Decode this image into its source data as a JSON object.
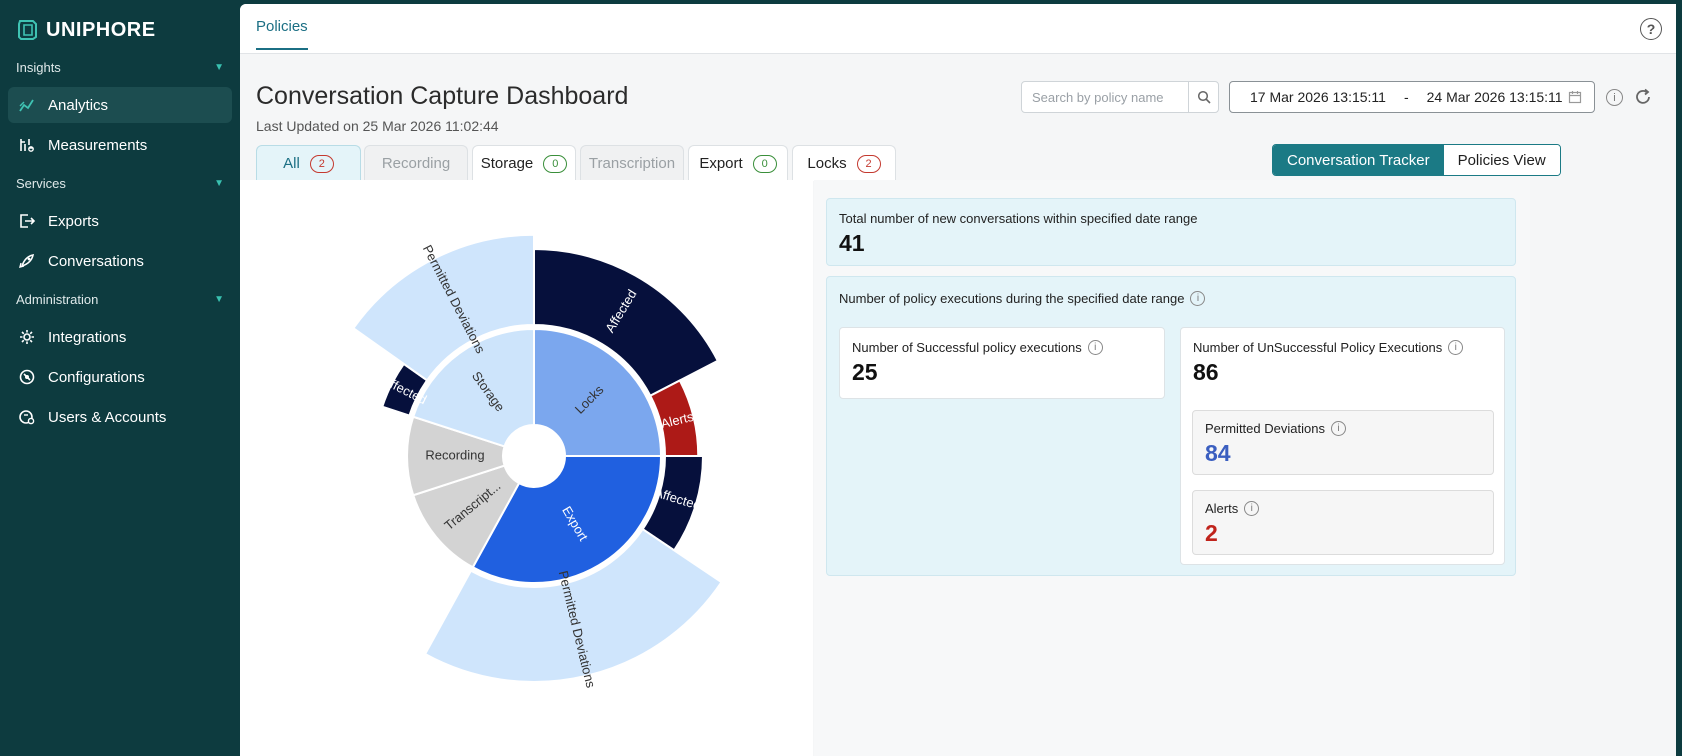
{
  "brand": {
    "name": "UNIPHORE"
  },
  "sidebar": {
    "sections": [
      {
        "label": "Insights",
        "items": [
          {
            "label": "Analytics",
            "icon": "analytics-icon"
          },
          {
            "label": "Measurements",
            "icon": "measurements-icon"
          }
        ]
      },
      {
        "label": "Services",
        "items": [
          {
            "label": "Exports",
            "icon": "export-icon"
          },
          {
            "label": "Conversations",
            "icon": "rocket-icon"
          }
        ]
      },
      {
        "label": "Administration",
        "items": [
          {
            "label": "Integrations",
            "icon": "gear-icon"
          },
          {
            "label": "Configurations",
            "icon": "configurations-icon"
          },
          {
            "label": "Users & Accounts",
            "icon": "users-icon"
          }
        ]
      }
    ],
    "active": "Analytics"
  },
  "header": {
    "tab": "Policies",
    "help": "?"
  },
  "dashboard": {
    "title": "Conversation Capture Dashboard",
    "last_updated": "Last Updated on 25 Mar 2026 11:02:44",
    "search_placeholder": "Search by policy name",
    "date_from": "17 Mar 2026 13:15:11",
    "date_sep": "-",
    "date_to": "24 Mar 2026 13:15:11"
  },
  "filter_tabs": [
    {
      "label": "All",
      "badge": "2",
      "badge_color": "red",
      "state": "active"
    },
    {
      "label": "Recording",
      "badge": "",
      "state": "disabled"
    },
    {
      "label": "Storage",
      "badge": "0",
      "badge_color": "green",
      "state": "normal"
    },
    {
      "label": "Transcription",
      "badge": "",
      "state": "disabled"
    },
    {
      "label": "Export",
      "badge": "0",
      "badge_color": "green",
      "state": "normal"
    },
    {
      "label": "Locks",
      "badge": "2",
      "badge_color": "red",
      "state": "normal"
    }
  ],
  "view_toggle": {
    "selected": "Conversation Tracker",
    "other": "Policies View"
  },
  "stats": {
    "total_label": "Total number of new conversations within specified date range",
    "total_value": "41",
    "exec_label": "Number of policy executions during the specified date range",
    "success_label": "Number of Successful policy executions",
    "success_value": "25",
    "unsuccess_label": "Number of UnSuccessful Policy Executions",
    "unsuccess_value": "86",
    "deviations_label": "Permitted Deviations",
    "deviations_value": "84",
    "alerts_label": "Alerts",
    "alerts_value": "2"
  },
  "colors": {
    "sidebar_bg": "#0d3b3f",
    "accent": "#1b7a85",
    "deviations_value": "#3b5fc0",
    "alerts_value": "#c0231b",
    "locks": "#7ba7ee",
    "export": "#2060e0",
    "storage": "#cde4fb",
    "recording": "#d3d3d3",
    "affected": "#06103c",
    "alerts": "#ad1a17",
    "permitted": "#cfe5fc"
  },
  "chart_data": {
    "type": "sunburst",
    "inner": [
      {
        "label": "Locks",
        "value": 25,
        "color": "#7ba7ee"
      },
      {
        "label": "Export",
        "value": 33,
        "color": "#2060e0"
      },
      {
        "label": "Transcript...",
        "value": 12,
        "color": "#d3d3d3"
      },
      {
        "label": "Recording",
        "value": 10,
        "color": "#d3d3d3"
      },
      {
        "label": "Storage",
        "value": 20,
        "color": "#cde4fb"
      }
    ],
    "outer": [
      {
        "label": "Affected",
        "value": 16,
        "color": "#06103c",
        "parent": "Locks"
      },
      {
        "label": "Alerts",
        "value": 7,
        "color": "#ad1a17",
        "parent": "Locks"
      },
      {
        "label": "Affected",
        "value": 8,
        "color": "#06103c",
        "parent": "Export"
      },
      {
        "label": "Permitted Deviations",
        "value": 20,
        "color": "#cfe5fc",
        "parent": "Export"
      },
      {
        "label": "Affected",
        "value": 6,
        "color": "#06103c",
        "parent": "Storage"
      },
      {
        "label": "Permitted Deviations",
        "value": 19,
        "color": "#cfe5fc",
        "parent": "Storage"
      }
    ]
  }
}
